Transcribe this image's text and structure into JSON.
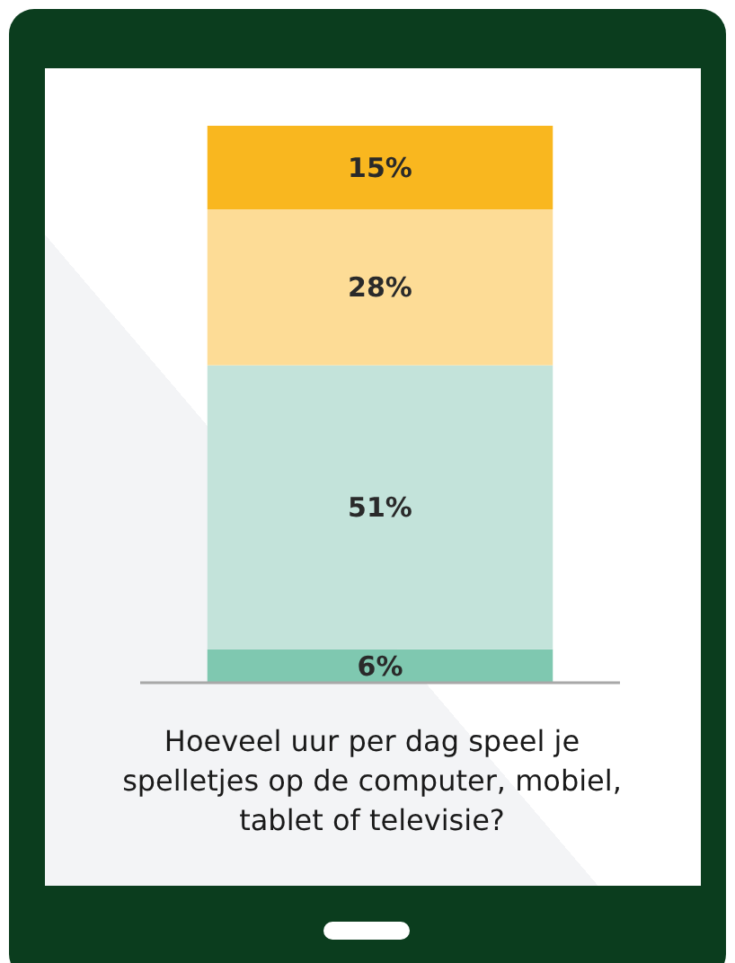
{
  "chart_data": {
    "type": "bar",
    "stacked": true,
    "title": "Hoeveel uur per dag speel je spelletjes op de computer, mobiel, tablet of televisie?",
    "categories": [
      null
    ],
    "series": [
      {
        "color": "#7fc8b0",
        "values": [
          6
        ],
        "value_labels": [
          "6%"
        ]
      },
      {
        "color": "#c3e3da",
        "values": [
          51
        ],
        "value_labels": [
          "51%"
        ]
      },
      {
        "color": "#fddc96",
        "values": [
          28
        ],
        "value_labels": [
          "28%"
        ]
      },
      {
        "color": "#f9b71f",
        "values": [
          15
        ],
        "value_labels": [
          "15%"
        ]
      }
    ]
  }
}
